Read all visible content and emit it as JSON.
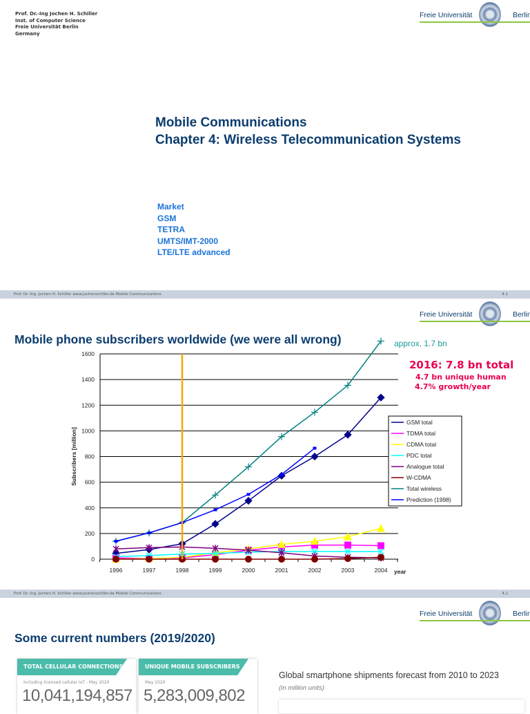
{
  "slide1": {
    "author_lines": [
      "Prof. Dr.-Ing Jochen H. Schiller",
      "Inst. of Computer Science",
      "Freie Universität Berlin",
      "Germany"
    ],
    "title_line1": "Mobile Communications",
    "title_line2": "Chapter 4: Wireless Telecommunication Systems",
    "toc": [
      "Market",
      "GSM",
      "TETRA",
      "UMTS/IMT-2000",
      "LTE/LTE advanced"
    ]
  },
  "logo": {
    "left": "Freie Universität",
    "right": "Berlin"
  },
  "footer": {
    "text": "Prof. Dr.-Ing. Jochen H. Schiller    www.jochenschiller.de    Mobile Communications",
    "page1": "4.1",
    "page2": "4.2"
  },
  "slide2": {
    "title": "Mobile phone subscribers worldwide (we were all wrong)",
    "annot_approx": "approx. 1.7 bn",
    "annot_2016": "2016: 7.8 bn total",
    "annot_unique": "4.7 bn unique human",
    "annot_growth": "4.7% growth/year"
  },
  "chart_data": {
    "type": "line",
    "xlabel": "year",
    "ylabel": "Subscribers [million]",
    "ylim": [
      0,
      1600
    ],
    "yticks": [
      "0",
      "200",
      "400",
      "600",
      "800",
      "1000",
      "1200",
      "1400",
      "1600"
    ],
    "categories": [
      "1996",
      "1997",
      "1998",
      "1999",
      "2000",
      "2001",
      "2002",
      "2003",
      "2004"
    ],
    "grid": "horizontal",
    "legend": "right",
    "marker_line": "1998",
    "marker_color": "#f5a800",
    "series": [
      {
        "name": "GSM total",
        "color": "#00008b",
        "values": [
          45,
          75,
          120,
          275,
          455,
          650,
          800,
          970,
          1260
        ]
      },
      {
        "name": "TDMA total",
        "color": "#ff00ff",
        "values": [
          10,
          5,
          10,
          35,
          70,
          95,
          110,
          110,
          105
        ]
      },
      {
        "name": "CDMA total",
        "color": "#ffff00",
        "values": [
          0,
          5,
          15,
          50,
          80,
          115,
          140,
          175,
          240
        ]
      },
      {
        "name": "PDC total",
        "color": "#00ffff",
        "values": [
          20,
          28,
          40,
          45,
          55,
          60,
          60,
          60,
          60
        ]
      },
      {
        "name": "Analogue total",
        "color": "#800080",
        "values": [
          80,
          90,
          95,
          85,
          70,
          50,
          25,
          15,
          10
        ]
      },
      {
        "name": "W-CDMA",
        "color": "#800000",
        "values": [
          0,
          0,
          0,
          0,
          0,
          0,
          0,
          5,
          15
        ]
      },
      {
        "name": "Total wireless",
        "color": "#008080",
        "values": [
          140,
          205,
          285,
          500,
          720,
          955,
          1145,
          1355,
          1700
        ]
      },
      {
        "name": "Prediction (1998)",
        "color": "#0000ff",
        "values": [
          140,
          205,
          285,
          385,
          505,
          660,
          865,
          null,
          null
        ]
      }
    ]
  },
  "slide3": {
    "title": "Some current numbers (2019/2020)",
    "cards": [
      {
        "header": "TOTAL CELLULAR CONNECTIONS",
        "sub": "Including licensed cellular IoT - May 2020",
        "value": "10,041,194,857"
      },
      {
        "header": "UNIQUE MOBILE SUBSCRIBERS",
        "sub": "May 2020",
        "value": "5,283,009,802"
      }
    ],
    "forecast_title": "Global smartphone shipments forecast from 2010 to 2023",
    "forecast_sub": "(in million units)"
  }
}
